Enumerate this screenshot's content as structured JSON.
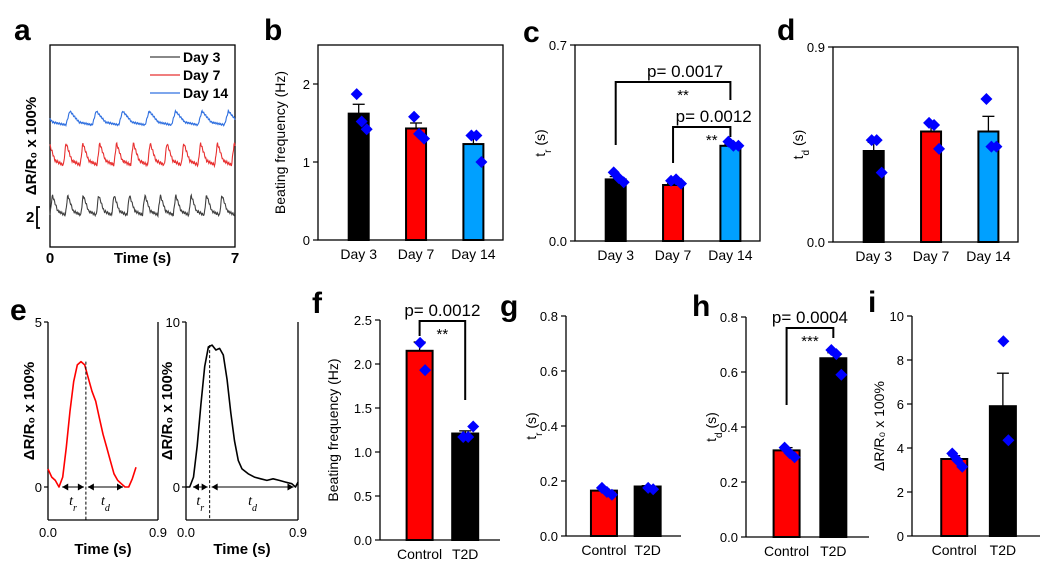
{
  "colors": {
    "black": "#000000",
    "red": "#ff0000",
    "cyan": "#00a0ff",
    "marker": "#0000ff",
    "day3_trace": "#404040",
    "day7_trace": "#e83030",
    "day14_trace": "#3070e0"
  },
  "chart_data": [
    {
      "id": "a",
      "type": "line",
      "panel_label": "a",
      "xlabel": "Time (s)",
      "ylabel": "ΔR/R₀ x 100%",
      "xlim": [
        0,
        7
      ],
      "x_ticks": [
        "0",
        "7"
      ],
      "scale_bar_label": "2",
      "legend": [
        "Day 3",
        "Day 7",
        "Day 14"
      ],
      "legend_position": "top-right",
      "series": [
        {
          "name": "Day 3",
          "peaks_in_window": 12,
          "baseline_offset": 0,
          "amplitude": 2.6
        },
        {
          "name": "Day 7",
          "peaks_in_window": 11,
          "baseline_offset": 5.4,
          "amplitude": 2.6
        },
        {
          "name": "Day 14",
          "peaks_in_window": 7,
          "baseline_offset": 11.6,
          "amplitude": 1.5
        }
      ]
    },
    {
      "id": "b",
      "type": "bar",
      "panel_label": "b",
      "ylabel": "Beating frequency (Hz)",
      "ylim": [
        0,
        2.5
      ],
      "y_ticks": [
        0,
        1,
        2
      ],
      "y_tick_labels": [
        "0",
        "1",
        "2"
      ],
      "categories": [
        "Day 3",
        "Day 7",
        "Day 14"
      ],
      "values": [
        1.62,
        1.43,
        1.23
      ],
      "errors": [
        0.12,
        0.07,
        0.11
      ],
      "points": [
        [
          1.87,
          1.52,
          1.42
        ],
        [
          1.58,
          1.36,
          1.3
        ],
        [
          1.34,
          1.34,
          1.0
        ]
      ],
      "annotations": []
    },
    {
      "id": "c",
      "type": "bar",
      "panel_label": "c",
      "ylabel": "t_r (s)",
      "ylim": [
        0,
        0.7
      ],
      "y_ticks": [
        0,
        0.7
      ],
      "y_tick_labels": [
        "0.0",
        "0.7"
      ],
      "categories": [
        "Day 3",
        "Day 7",
        "Day 14"
      ],
      "values": [
        0.22,
        0.2,
        0.34
      ],
      "errors": [
        0.01,
        0.005,
        0.005
      ],
      "points": [
        [
          0.245,
          0.225,
          0.21
        ],
        [
          0.215,
          0.22,
          0.205
        ],
        [
          0.355,
          0.34,
          0.34
        ]
      ],
      "annotations": [
        {
          "from": 0,
          "to": 2,
          "p_text": "p= 0.0017",
          "stars": "**"
        },
        {
          "from": 1,
          "to": 2,
          "p_text": "p= 0.0012",
          "stars": "**"
        }
      ]
    },
    {
      "id": "d",
      "type": "bar",
      "panel_label": "d",
      "ylabel": "t_d (s)",
      "ylim": [
        0,
        0.9
      ],
      "y_ticks": [
        0,
        0.9
      ],
      "y_tick_labels": [
        "0.0",
        "0.9"
      ],
      "categories": [
        "Day 3",
        "Day 7",
        "Day 14"
      ],
      "values": [
        0.42,
        0.51,
        0.51
      ],
      "errors": [
        0.04,
        0.04,
        0.07
      ],
      "points": [
        [
          0.47,
          0.47,
          0.32
        ],
        [
          0.55,
          0.54,
          0.43
        ],
        [
          0.66,
          0.44,
          0.44
        ]
      ],
      "annotations": []
    },
    {
      "id": "e1",
      "type": "line",
      "panel_label": "e",
      "xlabel": "Time (s)",
      "ylabel": "ΔR/R₀ x 100%",
      "xlim": [
        0,
        0.9
      ],
      "ylim": [
        -1,
        5
      ],
      "x_tick_labels": [
        "0.0",
        "0.9"
      ],
      "y_ticks": [
        0,
        5
      ],
      "y_tick_labels": [
        "0",
        "5"
      ],
      "line_color_key": "red",
      "x": [
        0,
        0.03,
        0.06,
        0.09,
        0.12,
        0.15,
        0.18,
        0.21,
        0.24,
        0.27,
        0.3,
        0.33,
        0.36,
        0.39,
        0.42,
        0.45,
        0.48,
        0.51,
        0.54,
        0.57,
        0.6,
        0.63,
        0.66,
        0.69,
        0.72
      ],
      "y": [
        0.55,
        0.3,
        0.2,
        0.0,
        0.3,
        1.2,
        2.3,
        3.2,
        3.7,
        3.8,
        3.7,
        3.3,
        2.9,
        2.6,
        2.1,
        1.6,
        1.2,
        0.8,
        0.4,
        0.2,
        0.1,
        0.0,
        0.0,
        0.25,
        0.6
      ],
      "peak_time": 0.31,
      "rise_label": "t_r",
      "decay_label": "t_d",
      "rise_range": [
        0.1,
        0.31
      ],
      "decay_range": [
        0.31,
        0.63
      ]
    },
    {
      "id": "e2",
      "type": "line",
      "panel_label": "",
      "xlabel": "Time (s)",
      "ylabel": "ΔR/R₀ x 100%",
      "xlim": [
        0,
        0.9
      ],
      "ylim": [
        -2,
        10
      ],
      "x_tick_labels": [
        "0.0",
        "0.9"
      ],
      "y_ticks": [
        0,
        10
      ],
      "y_tick_labels": [
        "0",
        "10"
      ],
      "line_color_key": "black",
      "x": [
        0,
        0.03,
        0.06,
        0.09,
        0.12,
        0.15,
        0.18,
        0.21,
        0.24,
        0.27,
        0.3,
        0.33,
        0.36,
        0.39,
        0.42,
        0.45,
        0.5,
        0.55,
        0.6,
        0.65,
        0.7,
        0.75,
        0.8,
        0.85,
        0.88,
        0.9
      ],
      "y": [
        0,
        0.0,
        0.6,
        2.5,
        5.0,
        7.3,
        8.5,
        8.6,
        8.3,
        8.4,
        8.0,
        6.5,
        4.5,
        2.8,
        1.6,
        1.1,
        0.8,
        0.6,
        0.5,
        0.4,
        0.5,
        0.4,
        0.3,
        0.2,
        0.0,
        0.3
      ],
      "peak_time": 0.19,
      "rise_label": "t_r",
      "decay_label": "t_d",
      "rise_range": [
        0.04,
        0.19
      ],
      "decay_range": [
        0.19,
        0.88
      ]
    },
    {
      "id": "f",
      "type": "bar",
      "panel_label": "f",
      "ylabel": "Beating frequency (Hz)",
      "ylim": [
        0,
        2.5
      ],
      "y_ticks": [
        0,
        0.5,
        1,
        1.5,
        2,
        2.5
      ],
      "y_tick_labels": [
        "0.0",
        "0.5",
        "1.0",
        "1.5",
        "2.0",
        "2.5"
      ],
      "categories": [
        "Control",
        "T2D"
      ],
      "values": [
        2.15,
        1.21
      ],
      "errors": [
        0.1,
        0.03
      ],
      "bar_color_keys": [
        "red",
        "black"
      ],
      "points": [
        [
          2.24,
          1.93
        ],
        [
          1.17,
          1.17,
          1.29
        ]
      ],
      "annotations": [
        {
          "from": 0,
          "to": 1,
          "p_text": "p= 0.0012",
          "stars": "**"
        }
      ]
    },
    {
      "id": "g",
      "type": "bar",
      "panel_label": "g",
      "ylabel": "t_r (s)",
      "ylim": [
        0,
        0.8
      ],
      "y_ticks": [
        0,
        0.2,
        0.4,
        0.6,
        0.8
      ],
      "y_tick_labels": [
        "0.0",
        "0.2",
        "0.4",
        "0.6",
        "0.8"
      ],
      "categories": [
        "Control",
        "T2D"
      ],
      "values": [
        0.165,
        0.18
      ],
      "errors": [
        0.005,
        0.003
      ],
      "bar_color_keys": [
        "red",
        "black"
      ],
      "points": [
        [
          0.175,
          0.16,
          0.15
        ],
        [
          0.175,
          0.17
        ]
      ],
      "annotations": []
    },
    {
      "id": "h",
      "type": "bar",
      "panel_label": "h",
      "ylabel": "t_d (s)",
      "ylim": [
        0,
        0.8
      ],
      "y_ticks": [
        0,
        0.2,
        0.4,
        0.6,
        0.8
      ],
      "y_tick_labels": [
        "0.0",
        "0.2",
        "0.4",
        "0.6",
        "0.8"
      ],
      "categories": [
        "Control",
        "T2D"
      ],
      "values": [
        0.315,
        0.65
      ],
      "errors": [
        0.01,
        0.02
      ],
      "bar_color_keys": [
        "red",
        "black"
      ],
      "points": [
        [
          0.325,
          0.305,
          0.29
        ],
        [
          0.68,
          0.665,
          0.59
        ]
      ],
      "annotations": [
        {
          "from": 0,
          "to": 1,
          "p_text": "p= 0.0004",
          "stars": "***"
        }
      ]
    },
    {
      "id": "i",
      "type": "bar",
      "panel_label": "i",
      "ylabel": "ΔR/R₀ x 100%",
      "ylim": [
        0,
        10
      ],
      "y_ticks": [
        0,
        2,
        4,
        6,
        8,
        10
      ],
      "y_tick_labels": [
        "0",
        "2",
        "4",
        "6",
        "8",
        "10"
      ],
      "categories": [
        "Control",
        "T2D"
      ],
      "values": [
        3.5,
        5.9
      ],
      "errors": [
        0.15,
        1.5
      ],
      "bar_color_keys": [
        "red",
        "black"
      ],
      "points": [
        [
          3.75,
          3.45,
          3.15
        ],
        [
          8.85,
          4.35
        ]
      ],
      "annotations": []
    }
  ]
}
